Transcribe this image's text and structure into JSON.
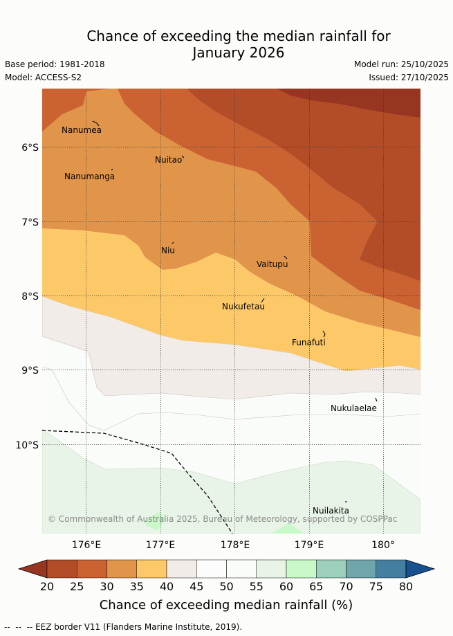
{
  "header": {
    "title_line1": "Chance of exceeding the median rainfall for",
    "title_line2": "January 2026",
    "base_period": "Base period: 1981-2018",
    "model": "Model: ACCESS-S2",
    "model_run": "Model run: 25/10/2025",
    "issued": "Issued: 27/10/2025"
  },
  "map": {
    "lon_ticks": [
      "176°E",
      "177°E",
      "178°E",
      "179°E",
      "180°"
    ],
    "lat_ticks": [
      "6°S",
      "7°S",
      "8°S",
      "9°S",
      "10°S"
    ],
    "places": [
      {
        "name": "Nanumea"
      },
      {
        "name": "Nuitao"
      },
      {
        "name": "Nanumanga"
      },
      {
        "name": "Niu"
      },
      {
        "name": "Vaitupu"
      },
      {
        "name": "Nukufetau"
      },
      {
        "name": "Funafuti"
      },
      {
        "name": "Nukulaelae"
      },
      {
        "name": "Nuilakita"
      }
    ],
    "copyright": "© Commonwealth of Australia 2025, Bureau of Meteorology, supported by COSPPac"
  },
  "colorbar": {
    "ticks": [
      "20",
      "25",
      "30",
      "35",
      "40",
      "45",
      "50",
      "55",
      "60",
      "65",
      "70",
      "75",
      "80"
    ],
    "colors": [
      "#b24d28",
      "#cb6232",
      "#e0954a",
      "#fdc968",
      "#f1ece7",
      "#fbfcfb",
      "#fafcf9",
      "#e8f4e8",
      "#c9f9c9",
      "#9dd0bc",
      "#6fa6ab",
      "#457fa0"
    ],
    "under_color": "#973620",
    "over_color": "#19508f",
    "label": "Chance of exceeding median rainfall (%)"
  },
  "footer": {
    "eez_note": "EEZ border V11 (Flanders Marine Institute, 2019)."
  }
}
